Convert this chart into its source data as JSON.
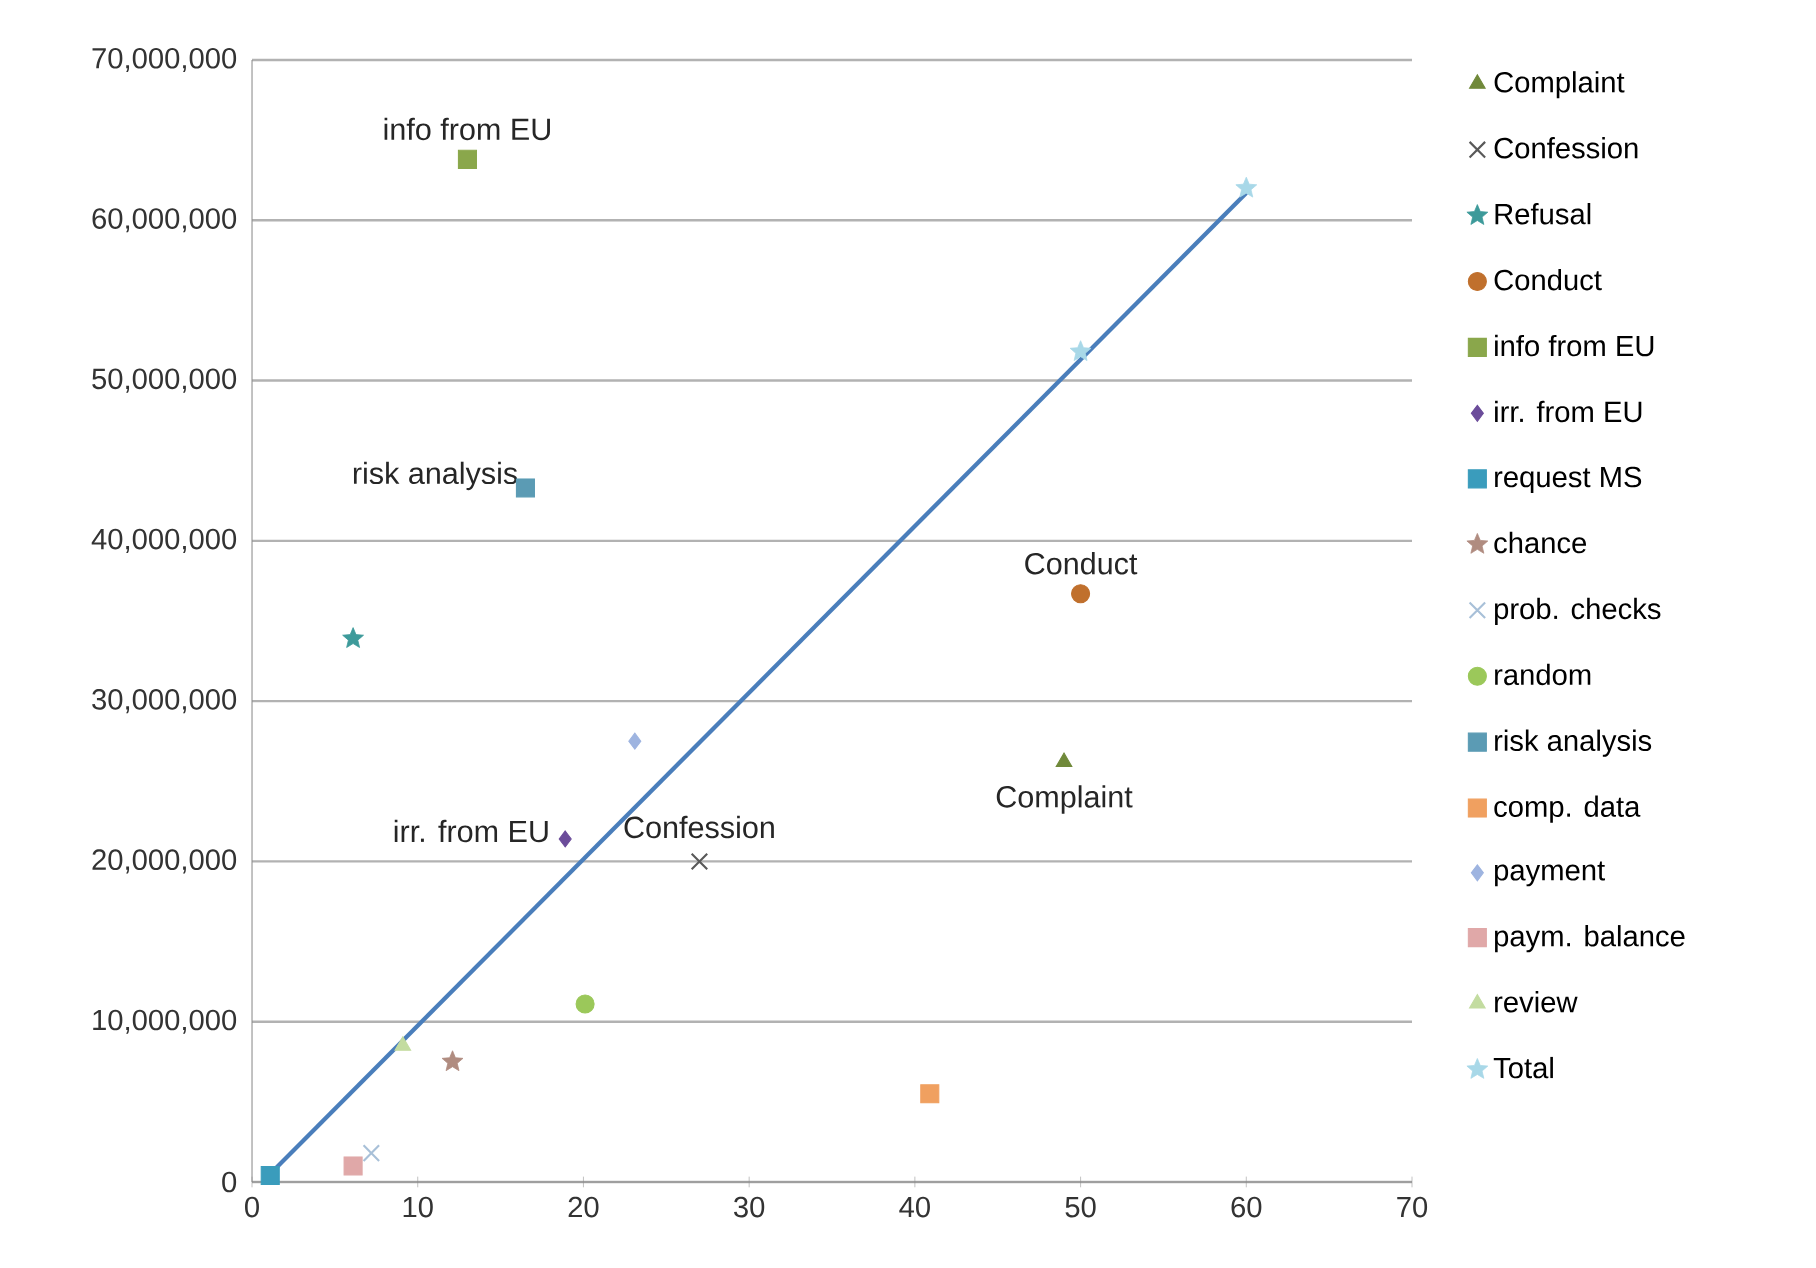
{
  "chart_data": {
    "type": "scatter",
    "xlim": [
      0,
      70
    ],
    "xticks": [
      0,
      10,
      20,
      30,
      40,
      50,
      60,
      70
    ],
    "ylim": [
      0,
      70000000
    ],
    "yticks": [
      {
        "value": 0,
        "label": "0"
      },
      {
        "value": 10000000,
        "label": "10,000,000"
      },
      {
        "value": 20000000,
        "label": "20,000,000"
      },
      {
        "value": 30000000,
        "label": "30,000,000"
      },
      {
        "value": 40000000,
        "label": "40,000,000"
      },
      {
        "value": 50000000,
        "label": "50,000,000"
      },
      {
        "value": 60000000,
        "label": "60,000,000"
      },
      {
        "value": 70000000,
        "label": "70,000,000"
      }
    ],
    "grid": "y",
    "legend": "right",
    "series": [
      {
        "name": "Complaint",
        "color": "#70893a",
        "marker": "triangle",
        "x": [
          49
        ],
        "values": [
          26200000
        ]
      },
      {
        "name": "Confession",
        "color": "#595959",
        "marker": "cross",
        "x": [
          27
        ],
        "values": [
          20000000
        ]
      },
      {
        "name": "Refusal",
        "color": "#3d9a9a",
        "marker": "star",
        "x": [
          6.1
        ],
        "values": [
          33900000
        ]
      },
      {
        "name": "Conduct",
        "color": "#c0702d",
        "marker": "circle",
        "x": [
          50
        ],
        "values": [
          36700000
        ]
      },
      {
        "name": "info from EU",
        "color": "#8aa74b",
        "marker": "square",
        "x": [
          13
        ],
        "values": [
          63800000
        ]
      },
      {
        "name": "irr. from EU",
        "color": "#6b4c9a",
        "marker": "diamond",
        "x": [
          18.9
        ],
        "values": [
          21400000
        ]
      },
      {
        "name": "request MS",
        "color": "#3a9cbc",
        "marker": "square",
        "x": [
          1.1
        ],
        "values": [
          400000
        ]
      },
      {
        "name": "chance",
        "color": "#b08c80",
        "marker": "star",
        "x": [
          12.1
        ],
        "values": [
          7500000
        ]
      },
      {
        "name": "prob. checks",
        "color": "#a8c0d8",
        "marker": "cross",
        "x": [
          7.2
        ],
        "values": [
          1800000
        ]
      },
      {
        "name": "random",
        "color": "#9bc85a",
        "marker": "circle",
        "x": [
          20.1
        ],
        "values": [
          11100000
        ]
      },
      {
        "name": "risk analysis",
        "color": "#5b9bb4",
        "marker": "square",
        "x": [
          16.5
        ],
        "values": [
          43300000
        ]
      },
      {
        "name": "comp. data",
        "color": "#f0a060",
        "marker": "square",
        "x": [
          40.9
        ],
        "values": [
          5500000
        ]
      },
      {
        "name": "payment",
        "color": "#9eb4e0",
        "marker": "diamond",
        "x": [
          23.1
        ],
        "values": [
          27500000
        ]
      },
      {
        "name": "paym. balance",
        "color": "#e0a8a8",
        "marker": "square",
        "x": [
          6.1
        ],
        "values": [
          1000000
        ]
      },
      {
        "name": "review",
        "color": "#c3dca0",
        "marker": "triangle",
        "x": [
          9.1
        ],
        "values": [
          8500000
        ]
      },
      {
        "name": "Total",
        "color": "#a8d8e8",
        "marker": "star",
        "x": [
          50,
          60
        ],
        "values": [
          51800000,
          62000000
        ]
      },
      {
        "type": "line",
        "color": "#4a7ebb",
        "x": [
          1,
          60
        ],
        "values": [
          400000,
          61700000
        ]
      }
    ],
    "annotations": [
      {
        "text": "Complaint",
        "x": 49,
        "y": 26200000
      },
      {
        "text": "Confession",
        "x": 27,
        "y": 20000000
      },
      {
        "text": "Conduct",
        "x": 50,
        "y": 36700000
      },
      {
        "text": "info from EU",
        "x": 13,
        "y": 63800000
      },
      {
        "text": "irr. from EU",
        "x": 18.9,
        "y": 21400000
      },
      {
        "text": "risk analysis",
        "x": 16.5,
        "y": 43300000
      }
    ]
  }
}
